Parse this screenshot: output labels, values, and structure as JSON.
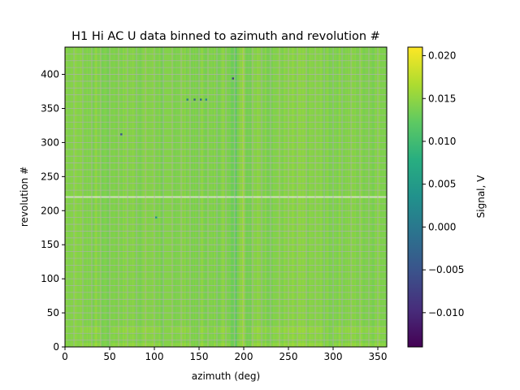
{
  "chart_data": {
    "type": "heatmap",
    "title": "H1 Hi AC U data binned to azimuth and revolution #",
    "xlabel": "azimuth (deg)",
    "ylabel": "revolution #",
    "xlim": [
      0,
      360
    ],
    "ylim": [
      0,
      440
    ],
    "xticks": [
      0,
      50,
      100,
      150,
      200,
      250,
      300,
      350
    ],
    "yticks": [
      0,
      50,
      100,
      150,
      200,
      250,
      300,
      350,
      400
    ],
    "grid": true,
    "colormap": "viridis",
    "colorbar": {
      "label": "Signal, V",
      "range": [
        -0.014,
        0.021
      ],
      "ticks": [
        {
          "value": 0.02,
          "label": "0.020"
        },
        {
          "value": 0.015,
          "label": "0.015"
        },
        {
          "value": 0.01,
          "label": "0.010"
        },
        {
          "value": 0.005,
          "label": "0.005"
        },
        {
          "value": 0.0,
          "label": "0.000"
        },
        {
          "value": -0.005,
          "label": "−0.005"
        },
        {
          "value": -0.01,
          "label": "−0.010"
        }
      ]
    },
    "base_level": 0.0145,
    "azimuth_features": [
      {
        "from": 0,
        "to": 18,
        "level": 0.0148
      },
      {
        "from": 40,
        "to": 52,
        "level": 0.0138
      },
      {
        "from": 108,
        "to": 118,
        "level": 0.0132
      },
      {
        "from": 142,
        "to": 150,
        "level": 0.0134
      },
      {
        "from": 160,
        "to": 166,
        "level": 0.0136
      },
      {
        "from": 185,
        "to": 189,
        "level": 0.0128
      },
      {
        "from": 190,
        "to": 193,
        "level": 0.0108
      },
      {
        "from": 195,
        "to": 198,
        "level": 0.0165
      },
      {
        "from": 198,
        "to": 201,
        "level": 0.0172
      },
      {
        "from": 203,
        "to": 208,
        "level": 0.0135
      },
      {
        "from": 290,
        "to": 300,
        "level": 0.014
      }
    ],
    "revolution_features": [
      {
        "from": 0,
        "to": 6,
        "level": 0.0162
      },
      {
        "from": 10,
        "to": 18,
        "level": 0.0152
      },
      {
        "from": 20,
        "to": 30,
        "level": 0.016
      },
      {
        "from": 218,
        "to": 222,
        "level": 0.0155
      }
    ],
    "masked_rows": [
      220
    ],
    "point_features": [
      {
        "azimuth": 63,
        "revolution": 312,
        "level": -0.005
      },
      {
        "azimuth": 137,
        "revolution": 363,
        "level": 0.0
      },
      {
        "azimuth": 145,
        "revolution": 363,
        "level": -0.004
      },
      {
        "azimuth": 152,
        "revolution": 363,
        "level": -0.002
      },
      {
        "azimuth": 158,
        "revolution": 363,
        "level": 0.002
      },
      {
        "azimuth": 188,
        "revolution": 394,
        "level": -0.008
      },
      {
        "azimuth": 102,
        "revolution": 190,
        "level": 0.004
      }
    ]
  }
}
